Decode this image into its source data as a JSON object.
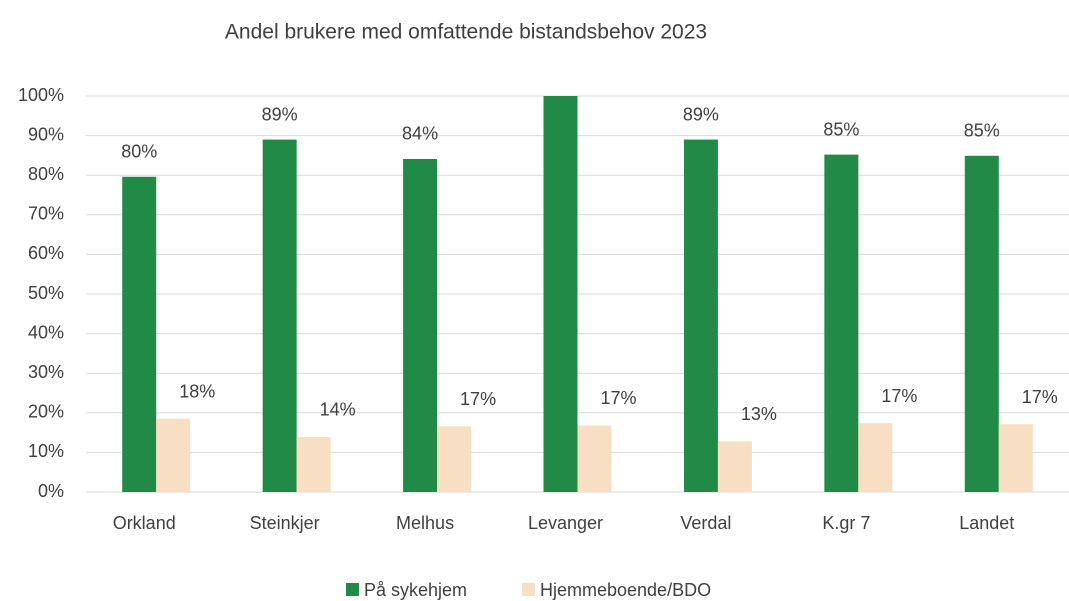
{
  "chart_data": {
    "type": "bar",
    "title": "Andel brukere med omfattende bistandsbehov 2023",
    "categories": [
      "Orkland",
      "Steinkjer",
      "Melhus",
      "Levanger",
      "Verdal",
      "K.gr 7",
      "Landet"
    ],
    "series": [
      {
        "name": "På sykehjem",
        "color": "#218a47",
        "values": [
          79.6,
          89,
          84.1,
          100,
          89,
          85.2,
          84.9
        ],
        "value_labels": [
          "80%",
          "89%",
          "84%",
          null,
          "89%",
          "85%",
          "85%"
        ]
      },
      {
        "name": "Hjemmeboende/BDO",
        "color": "#f8dfc3",
        "values": [
          18.5,
          13.9,
          16.6,
          16.8,
          12.8,
          17.4,
          17.1
        ],
        "value_labels": [
          "18%",
          "14%",
          "17%",
          "17%",
          "13%",
          "17%",
          "17%"
        ]
      }
    ],
    "ylim": [
      0,
      100
    ],
    "yticks": [
      {
        "value": 0,
        "label": "0%"
      },
      {
        "value": 10,
        "label": "10%"
      },
      {
        "value": 20,
        "label": "20%"
      },
      {
        "value": 30,
        "label": "30%"
      },
      {
        "value": 40,
        "label": "40%"
      },
      {
        "value": 50,
        "label": "50%"
      },
      {
        "value": 60,
        "label": "60%"
      },
      {
        "value": 70,
        "label": "70%"
      },
      {
        "value": 80,
        "label": "80%"
      },
      {
        "value": 90,
        "label": "90%"
      },
      {
        "value": 100,
        "label": "100%"
      }
    ],
    "grid": true,
    "legend": "bottom"
  }
}
